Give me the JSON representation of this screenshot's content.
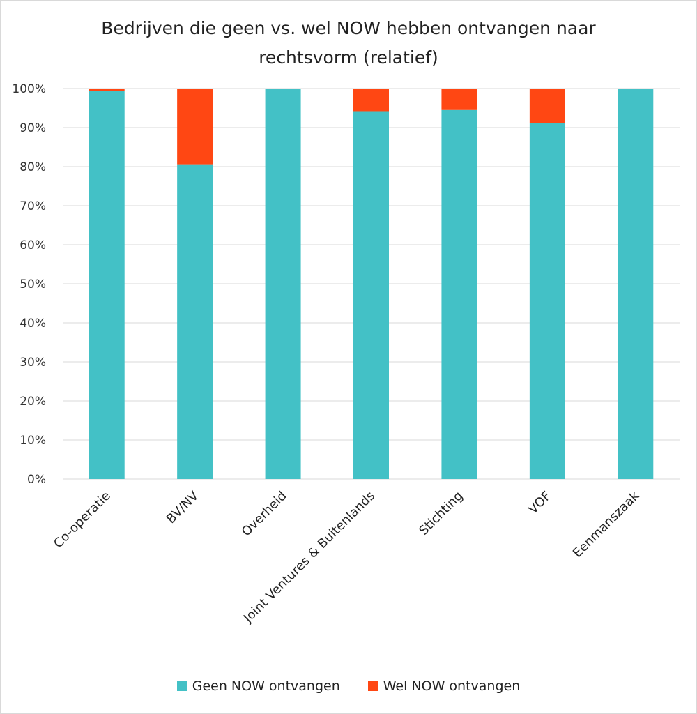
{
  "chart_data": {
    "type": "bar",
    "stacked": true,
    "title_line1": "Bedrijven die geen vs. wel NOW hebben ontvangen naar",
    "title_line2": "rechtsvorm (relatief)",
    "categories": [
      "Co-operatie",
      "BV/NV",
      "Overheid",
      "Joint Ventures & Buitenlands",
      "Stichting",
      "VOF",
      "Eenmanszaak"
    ],
    "series": [
      {
        "name": "Geen NOW ontvangen",
        "color": "#43c1c6",
        "values": [
          99.3,
          80.6,
          100,
          94.2,
          94.5,
          91.1,
          99.9
        ]
      },
      {
        "name": "Wel NOW ontvangen",
        "color": "#ff4713",
        "values": [
          0.7,
          19.4,
          0,
          5.8,
          5.5,
          8.9,
          0.1
        ]
      }
    ],
    "yticks": [
      "0%",
      "10%",
      "20%",
      "30%",
      "40%",
      "50%",
      "60%",
      "70%",
      "80%",
      "90%",
      "100%"
    ],
    "ylim": [
      0,
      100
    ],
    "grid": true,
    "legend_position": "bottom"
  }
}
